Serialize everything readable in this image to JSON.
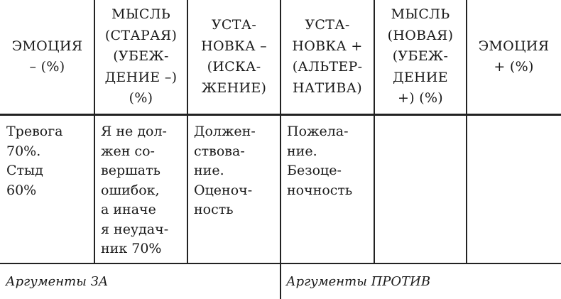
{
  "table": {
    "headers": [
      "ЭМОЦИЯ\n– (%)",
      "МЫСЛЬ\n(СТАРАЯ)\n(УБЕЖ-\nДЕНИЕ –)\n(%)",
      "УСТА-\nНОВКА –\n(ИСКА-\nЖЕНИЕ)",
      "УСТА-\nНОВКА +\n(АЛЬТЕР-\nНАТИВА)",
      "МЫСЛЬ\n(НОВАЯ)\n(УБЕЖ-\nДЕНИЕ\n+) (%)",
      "ЭМОЦИЯ\n+ (%)"
    ],
    "row": [
      "Тревога\n70%.\nСтыд\n60%",
      "Я не дол-\nжен со-\nвершать\nошибок,\nа иначе\nя неудач-\nник 70%",
      "Должен-\nствова-\nние.\nОценоч-\nность",
      "Пожела-\nние.\nБезоце-\nночность",
      "",
      ""
    ],
    "footer": {
      "arguments_for": "Аргументы ЗА",
      "arguments_against": "Аргументы ПРОТИВ"
    }
  }
}
